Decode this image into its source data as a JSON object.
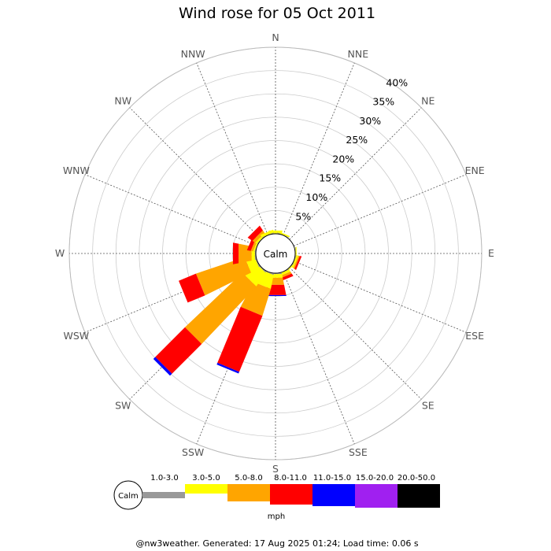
{
  "chart_data": {
    "type": "windrose",
    "title": "Wind rose for 05 Oct 2011",
    "directions": [
      "N",
      "NNE",
      "NE",
      "ENE",
      "E",
      "ESE",
      "SE",
      "SSE",
      "S",
      "SSW",
      "SW",
      "WSW",
      "W",
      "WNW",
      "NW",
      "NNW"
    ],
    "ring_labels": [
      "5%",
      "10%",
      "15%",
      "20%",
      "25%",
      "30%",
      "35%",
      "40%"
    ],
    "rmax_percent": 40,
    "calm_label": "Calm",
    "speed_bins": [
      {
        "label": "1.0-3.0",
        "color": "#999999"
      },
      {
        "label": "3.0-5.0",
        "color": "#ffff00"
      },
      {
        "label": "5.0-8.0",
        "color": "#ffa500"
      },
      {
        "label": "8.0-11.0",
        "color": "#ff0000"
      },
      {
        "label": "11.0-15.0",
        "color": "#0000ff"
      },
      {
        "label": "15.0-20.0",
        "color": "#a020f0"
      },
      {
        "label": "20.0-50.0",
        "color": "#000000"
      }
    ],
    "unit": "mph",
    "series": [
      {
        "direction": "N",
        "values": [
          0.1,
          0.6,
          0.0,
          0.0,
          0.0,
          0.0,
          0.0
        ]
      },
      {
        "direction": "NNE",
        "values": [
          0.1,
          0.3,
          0.0,
          0.0,
          0.0,
          0.0,
          0.0
        ]
      },
      {
        "direction": "NE",
        "values": [
          0.0,
          0.0,
          0.0,
          0.0,
          0.0,
          0.0,
          0.0
        ]
      },
      {
        "direction": "ENE",
        "values": [
          0.0,
          0.0,
          0.0,
          0.0,
          0.0,
          0.0,
          0.0
        ]
      },
      {
        "direction": "E",
        "values": [
          0.1,
          0.2,
          0.0,
          0.0,
          0.0,
          0.0,
          0.0
        ]
      },
      {
        "direction": "ESE",
        "values": [
          0.1,
          0.4,
          0.3,
          0.4,
          0.0,
          0.0,
          0.0
        ]
      },
      {
        "direction": "SE",
        "values": [
          0.1,
          0.2,
          0.0,
          0.0,
          0.0,
          0.0,
          0.0
        ]
      },
      {
        "direction": "SSE",
        "values": [
          0.1,
          0.5,
          0.5,
          0.6,
          0.0,
          0.0,
          0.0
        ]
      },
      {
        "direction": "S",
        "values": [
          0.2,
          0.8,
          1.5,
          2.2,
          0.2,
          0.0,
          0.0
        ]
      },
      {
        "direction": "SSW",
        "values": [
          0.2,
          3.0,
          6.0,
          13.0,
          0.4,
          0.0,
          0.0
        ]
      },
      {
        "direction": "SW",
        "values": [
          0.2,
          3.5,
          17.0,
          9.0,
          0.6,
          0.0,
          0.0
        ]
      },
      {
        "direction": "WSW",
        "values": [
          0.2,
          2.0,
          11.0,
          4.0,
          0.0,
          0.0,
          0.0
        ]
      },
      {
        "direction": "W",
        "values": [
          0.2,
          0.7,
          2.8,
          1.2,
          0.0,
          0.0,
          0.0
        ]
      },
      {
        "direction": "WNW",
        "values": [
          0.1,
          0.3,
          0.5,
          0.8,
          0.0,
          0.0,
          0.0
        ]
      },
      {
        "direction": "NW",
        "values": [
          0.1,
          0.4,
          0.7,
          1.2,
          0.0,
          0.0,
          0.0
        ]
      },
      {
        "direction": "NNW",
        "values": [
          0.1,
          0.6,
          0.0,
          0.0,
          0.0,
          0.0,
          0.0
        ]
      }
    ],
    "grid": true
  },
  "footer": "@nw3weather. Generated: 17 Aug 2025 01:24; Load time: 0.06 s"
}
